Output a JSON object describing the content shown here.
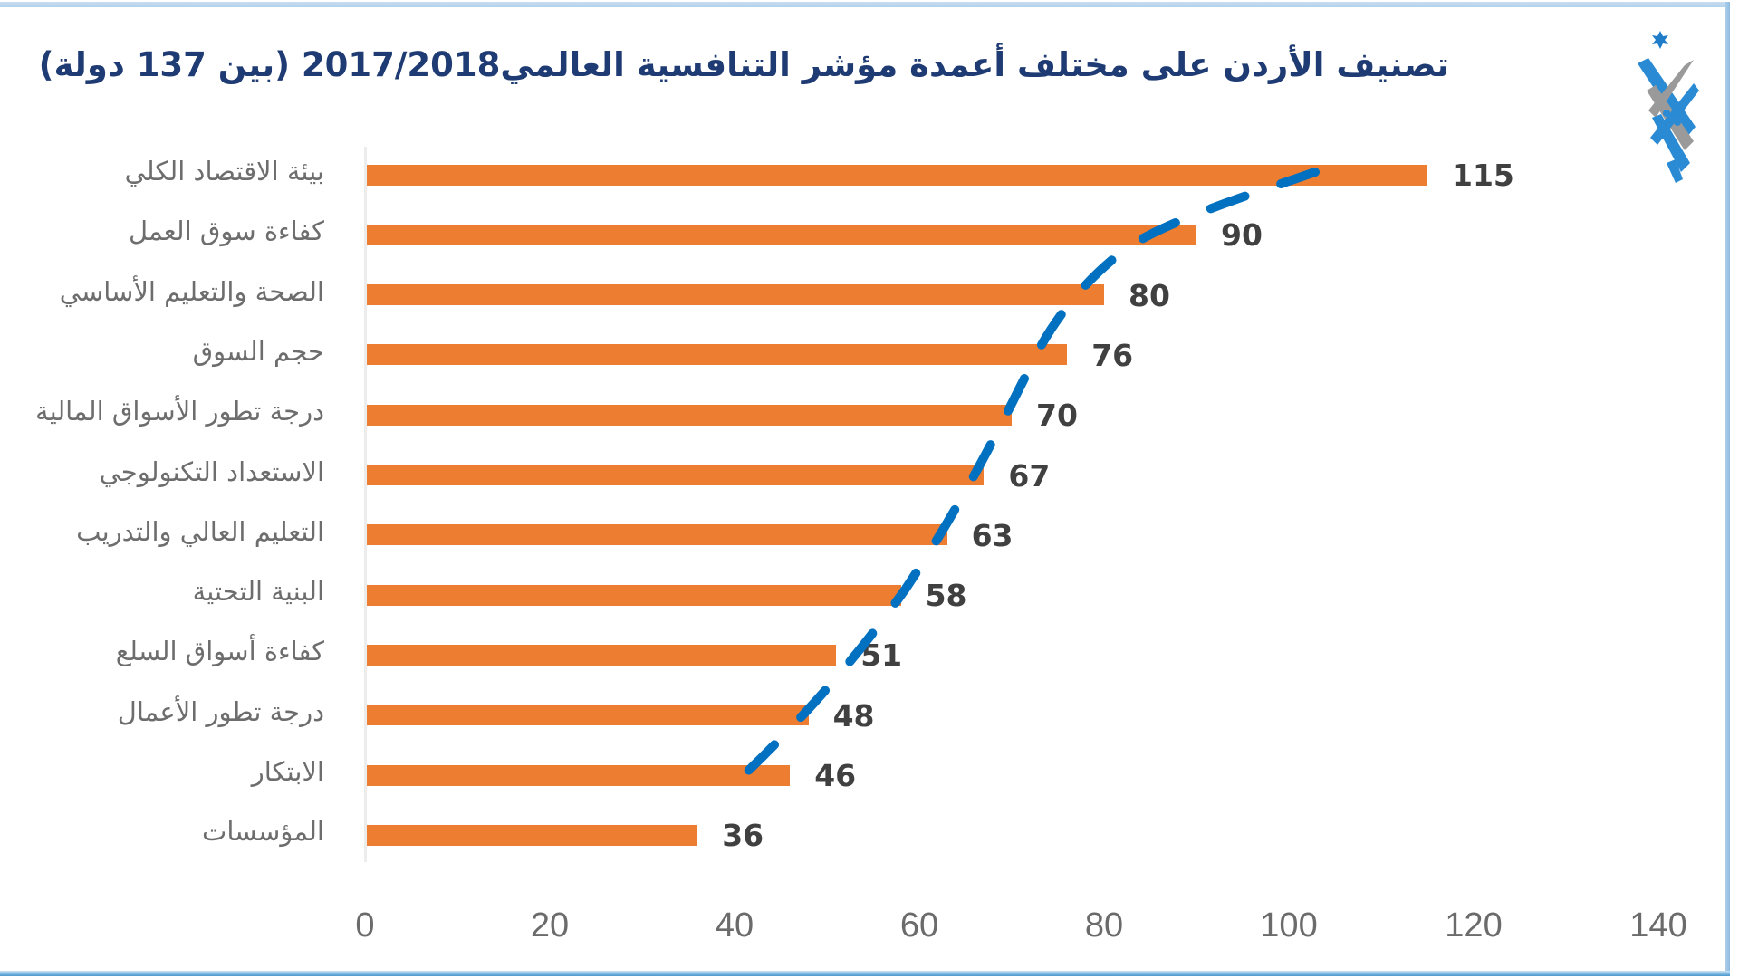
{
  "title": "تصنيف الأردن على مختلف أعمدة مؤشر التنافسية العالمي2017/2018  (بين 137 دولة)",
  "logo": {
    "icon": "jordan-emblem-logo-icon"
  },
  "colors": {
    "bar": "#ED7D31",
    "trend": "#0070C0",
    "title": "#1F3B73",
    "value_label": "#404040",
    "category_label": "#6D6D6D",
    "frame": "#B4D2EC"
  },
  "chart_data": {
    "type": "bar",
    "orientation": "horizontal",
    "title": "تصنيف الأردن على مختلف أعمدة مؤشر التنافسية العالمي2017/2018  (بين 137 دولة)",
    "xlabel": "",
    "ylabel": "",
    "xlim": [
      0,
      140
    ],
    "xticks": [
      0,
      20,
      40,
      60,
      80,
      100,
      120,
      140
    ],
    "grid": false,
    "legend": null,
    "categories": [
      "بيئة الاقتصاد الكلي",
      "كفاءة سوق العمل",
      "الصحة والتعليم الأساسي",
      "حجم السوق",
      "درجة تطور الأسواق المالية",
      "الاستعداد التكنولوجي",
      "التعليم العالي والتدريب",
      "البنية التحتية",
      "كفاءة أسواق السلع",
      "درجة تطور الأعمال",
      "الابتكار",
      "المؤسسات"
    ],
    "values": [
      115,
      90,
      80,
      76,
      70,
      67,
      63,
      58,
      51,
      48,
      46,
      36
    ],
    "data_labels": [
      "115",
      "90",
      "80",
      "76",
      "70",
      "67",
      "63",
      "58",
      "51",
      "48",
      "46",
      "36"
    ],
    "annotations": [
      {
        "type": "dashed-trend-line",
        "color": "#0070C0",
        "from_category": "بيئة الاقتصاد الكلي",
        "to_category": "الابتكار"
      }
    ]
  },
  "axis": {
    "ticks": [
      "0",
      "20",
      "40",
      "60",
      "80",
      "100",
      "120",
      "140"
    ]
  }
}
